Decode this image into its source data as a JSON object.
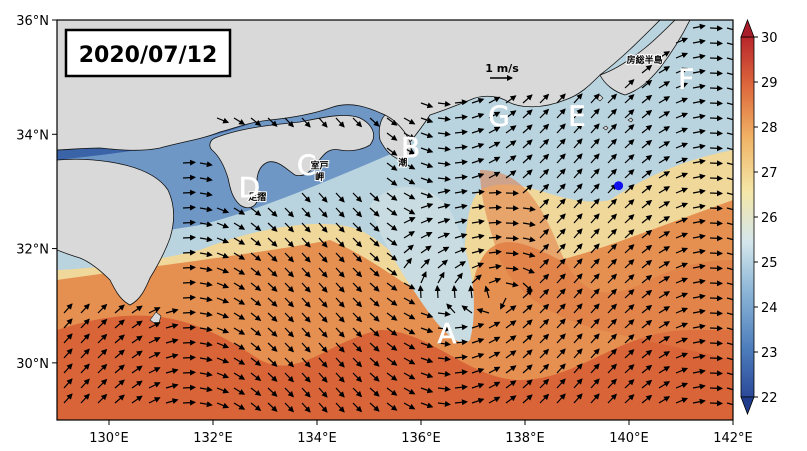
{
  "date_label": "2020/07/12",
  "scale": {
    "label": "1 m/s"
  },
  "lat_ticks": [
    {
      "value": 36,
      "label": "36°N"
    },
    {
      "value": 34,
      "label": "34°N"
    },
    {
      "value": 32,
      "label": "32°N"
    },
    {
      "value": 30,
      "label": "30°N"
    }
  ],
  "lon_ticks": [
    {
      "value": 130,
      "label": "130°E"
    },
    {
      "value": 132,
      "label": "132°E"
    },
    {
      "value": 134,
      "label": "134°E"
    },
    {
      "value": 136,
      "label": "136°E"
    },
    {
      "value": 138,
      "label": "138°E"
    },
    {
      "value": 140,
      "label": "140°E"
    },
    {
      "value": 142,
      "label": "142°E"
    }
  ],
  "extent": {
    "lon_min": 129,
    "lon_max": 142,
    "lat_min": 29,
    "lat_max": 36
  },
  "colorbar": {
    "min": 22,
    "max": 30,
    "ticks": [
      "22",
      "23",
      "24",
      "25",
      "26",
      "27",
      "28",
      "29",
      "30"
    ],
    "colors": [
      "#2b4a9a",
      "#4f7fbd",
      "#8fb8d8",
      "#d4e6ec",
      "#f4e7a8",
      "#f0b366",
      "#de6a3d",
      "#b9262b"
    ]
  },
  "point_labels": [
    {
      "id": "A",
      "lon": 136.5,
      "lat": 30.35
    },
    {
      "id": "B",
      "lon": 135.8,
      "lat": 33.6
    },
    {
      "id": "C",
      "lon": 133.8,
      "lat": 33.3
    },
    {
      "id": "D",
      "lon": 132.7,
      "lat": 32.9
    },
    {
      "id": "E",
      "lon": 139.0,
      "lat": 34.15
    },
    {
      "id": "F",
      "lon": 141.1,
      "lat": 34.8
    },
    {
      "id": "G",
      "lon": 137.5,
      "lat": 34.15
    }
  ],
  "place_labels": [
    {
      "text": "室戸",
      "lon": 134.05,
      "lat": 33.4
    },
    {
      "text": "岬",
      "lon": 134.05,
      "lat": 33.2
    },
    {
      "text": "潮",
      "lon": 135.65,
      "lat": 33.45
    },
    {
      "text": "足摺",
      "lon": 132.85,
      "lat": 32.85
    },
    {
      "text": "房総半島",
      "lon": 140.3,
      "lat": 35.25
    }
  ],
  "station": {
    "lon": 139.8,
    "lat": 33.1,
    "color": "#1010ee"
  },
  "colors": {
    "land": "#d9d9d9",
    "frame": "#000000"
  }
}
